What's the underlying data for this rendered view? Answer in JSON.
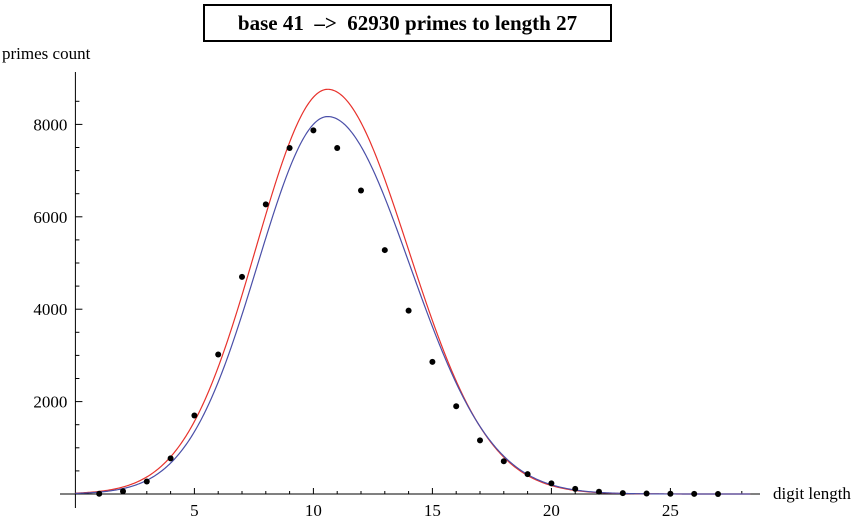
{
  "chart_data": {
    "type": "scatter",
    "title": "base 41  –>  62930 primes to length 27",
    "xlabel": "digit length",
    "ylabel": "primes count",
    "xlim": [
      0,
      28.5
    ],
    "ylim": [
      0,
      9000
    ],
    "xticks": [
      5,
      10,
      15,
      20,
      25
    ],
    "yticks": [
      2000,
      4000,
      6000,
      8000
    ],
    "grid": false,
    "series": [
      {
        "kind": "points",
        "color": "#000000",
        "x": [
          1,
          2,
          3,
          4,
          5,
          6,
          7,
          8,
          9,
          10,
          11,
          12,
          13,
          14,
          15,
          16,
          17,
          18,
          19,
          20,
          21,
          22,
          23,
          24,
          25,
          26,
          27
        ],
        "y": [
          5,
          60,
          270,
          770,
          1700,
          3020,
          4700,
          6270,
          7490,
          7870,
          7490,
          6570,
          5280,
          3970,
          2860,
          1900,
          1160,
          710,
          430,
          230,
          110,
          50,
          20,
          10,
          5,
          2,
          1
        ]
      },
      {
        "kind": "curve",
        "color": "#e8322c",
        "peak_x": 10.6,
        "peak_y": 8760,
        "sigma_left": 3.02,
        "sigma_right": 3.38
      },
      {
        "kind": "curve",
        "color": "#4a4fa8",
        "peak_x": 10.6,
        "peak_y": 8170,
        "sigma_left": 2.95,
        "sigma_right": 3.45
      }
    ]
  }
}
